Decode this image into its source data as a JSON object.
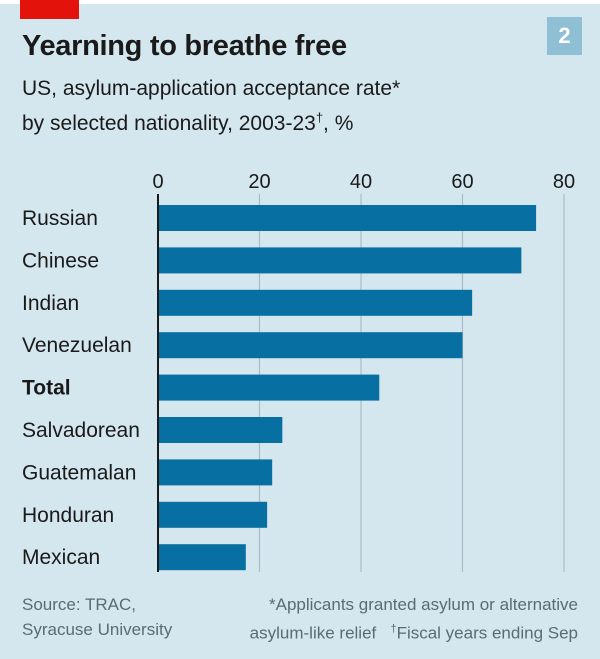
{
  "badge": "2",
  "chart_data": {
    "type": "bar",
    "orientation": "horizontal",
    "title": "Yearning to breathe free",
    "subtitle_line1": "US, asylum-application acceptance rate*",
    "subtitle_line2_prefix": "by selected nationality, 2003-23",
    "subtitle_line2_dagger": "†",
    "subtitle_line2_suffix": ", %",
    "xlabel": "",
    "ylabel": "",
    "xlim": [
      0,
      80
    ],
    "ticks": [
      "0",
      "20",
      "40",
      "60",
      "80"
    ],
    "tick_values": [
      0,
      20,
      40,
      60,
      80
    ],
    "grid": true,
    "categories": [
      "Russian",
      "Chinese",
      "Indian",
      "Venezuelan",
      "Total",
      "Salvadorean",
      "Guatemalan",
      "Honduran",
      "Mexican"
    ],
    "values": [
      74.5,
      71.6,
      61.9,
      60.0,
      43.6,
      24.5,
      22.5,
      21.5,
      17.3
    ],
    "bold_categories": [
      "Total"
    ],
    "bar_color": "#076fa1"
  },
  "footnotes": {
    "source_line1": "Source: TRAC,",
    "source_line2": "Syracuse University",
    "note_line1": "*Applicants granted asylum or alternative",
    "note_line2a": "asylum-like relief",
    "note_line2b_dagger": "†",
    "note_line2b": "Fiscal years ending Sep"
  },
  "colors": {
    "background": "#d4e6ee",
    "brand_red": "#e3120b",
    "bar": "#076fa1",
    "badge": "#8fbfd4"
  }
}
